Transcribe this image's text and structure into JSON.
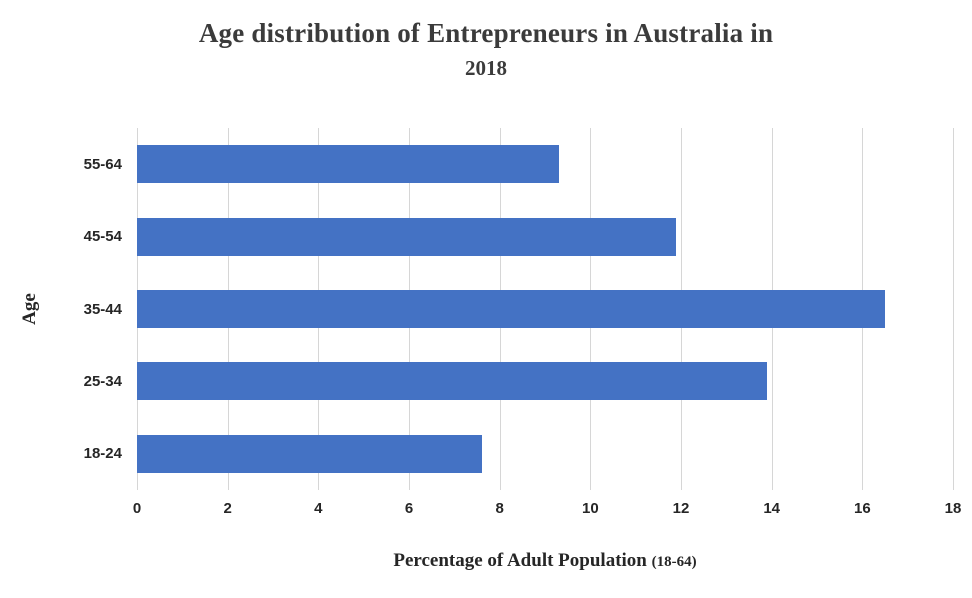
{
  "text": {
    "title_line1": "Age distribution of Entrepreneurs in Australia in",
    "title_line2": "2018",
    "ylabel": "Age",
    "xlabel_main": "Percentage of Adult Population ",
    "xlabel_paren": "(18-64)"
  },
  "colors": {
    "bar": "#4472C4",
    "gridline": "#D6D6D6",
    "title_text": "#3B3B3B",
    "axis_text": "#262626",
    "background": "#FFFFFF"
  },
  "chart_data": {
    "type": "bar",
    "orientation": "horizontal",
    "title": "Age distribution of Entrepreneurs in Australia in 2018",
    "xlabel": "Percentage of Adult Population (18-64)",
    "ylabel": "Age",
    "categories_top_to_bottom": [
      "55-64",
      "45-54",
      "35-44",
      "25-34",
      "18-24"
    ],
    "values": [
      9.3,
      11.9,
      16.5,
      13.9,
      7.6
    ],
    "xlim": [
      0,
      18
    ],
    "xticks": [
      0,
      2,
      4,
      6,
      8,
      10,
      12,
      14,
      16,
      18
    ],
    "grid": "vertical-only",
    "legend": "none",
    "bar_color": "#4472C4"
  }
}
